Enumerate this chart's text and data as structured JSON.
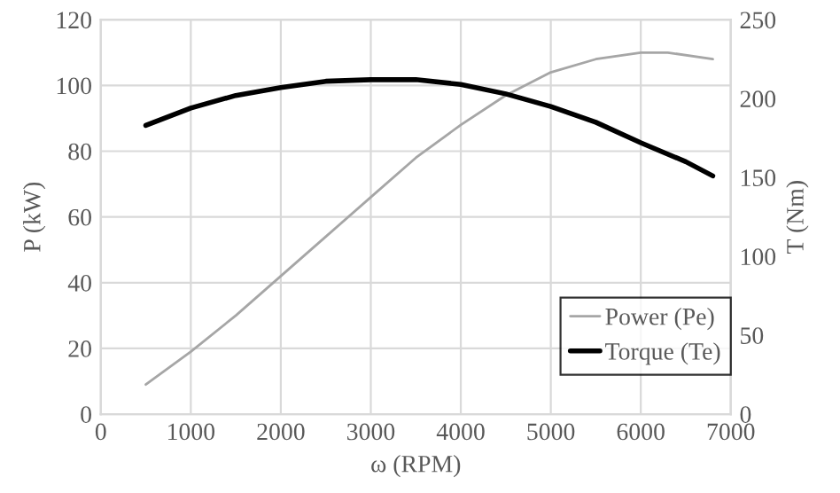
{
  "chart_data": {
    "type": "line",
    "xlabel": "ω (RPM)",
    "ylabel": "P (kW)",
    "y2label": "T (Nm)",
    "xlim": [
      0,
      7000
    ],
    "xticks": [
      0,
      1000,
      2000,
      3000,
      4000,
      5000,
      6000,
      7000
    ],
    "ylim": [
      0,
      120
    ],
    "yticks": [
      0,
      20,
      40,
      60,
      80,
      100,
      120
    ],
    "y2lim": [
      0,
      250
    ],
    "y2ticks": [
      0,
      50,
      100,
      150,
      200,
      250
    ],
    "grid": true,
    "legend": "bottom right",
    "series": [
      {
        "name": "Power (Pe)",
        "color": "#a6a6a6",
        "axis": "y",
        "x": [
          500,
          1000,
          1500,
          2000,
          2500,
          3000,
          3500,
          4000,
          4500,
          5000,
          5500,
          6000,
          6300,
          6800
        ],
        "values": [
          9,
          19,
          30,
          42,
          54,
          66,
          78,
          88,
          97,
          104,
          108,
          110,
          110,
          108
        ]
      },
      {
        "name": "Torque (Te)",
        "color": "#000000",
        "axis": "y2",
        "x": [
          500,
          1000,
          1500,
          2000,
          2500,
          3000,
          3500,
          4000,
          4500,
          5000,
          5500,
          6000,
          6500,
          6800
        ],
        "values": [
          183,
          194,
          202,
          207,
          211,
          212,
          212,
          209,
          203,
          195,
          185,
          172,
          160,
          151
        ]
      }
    ]
  }
}
